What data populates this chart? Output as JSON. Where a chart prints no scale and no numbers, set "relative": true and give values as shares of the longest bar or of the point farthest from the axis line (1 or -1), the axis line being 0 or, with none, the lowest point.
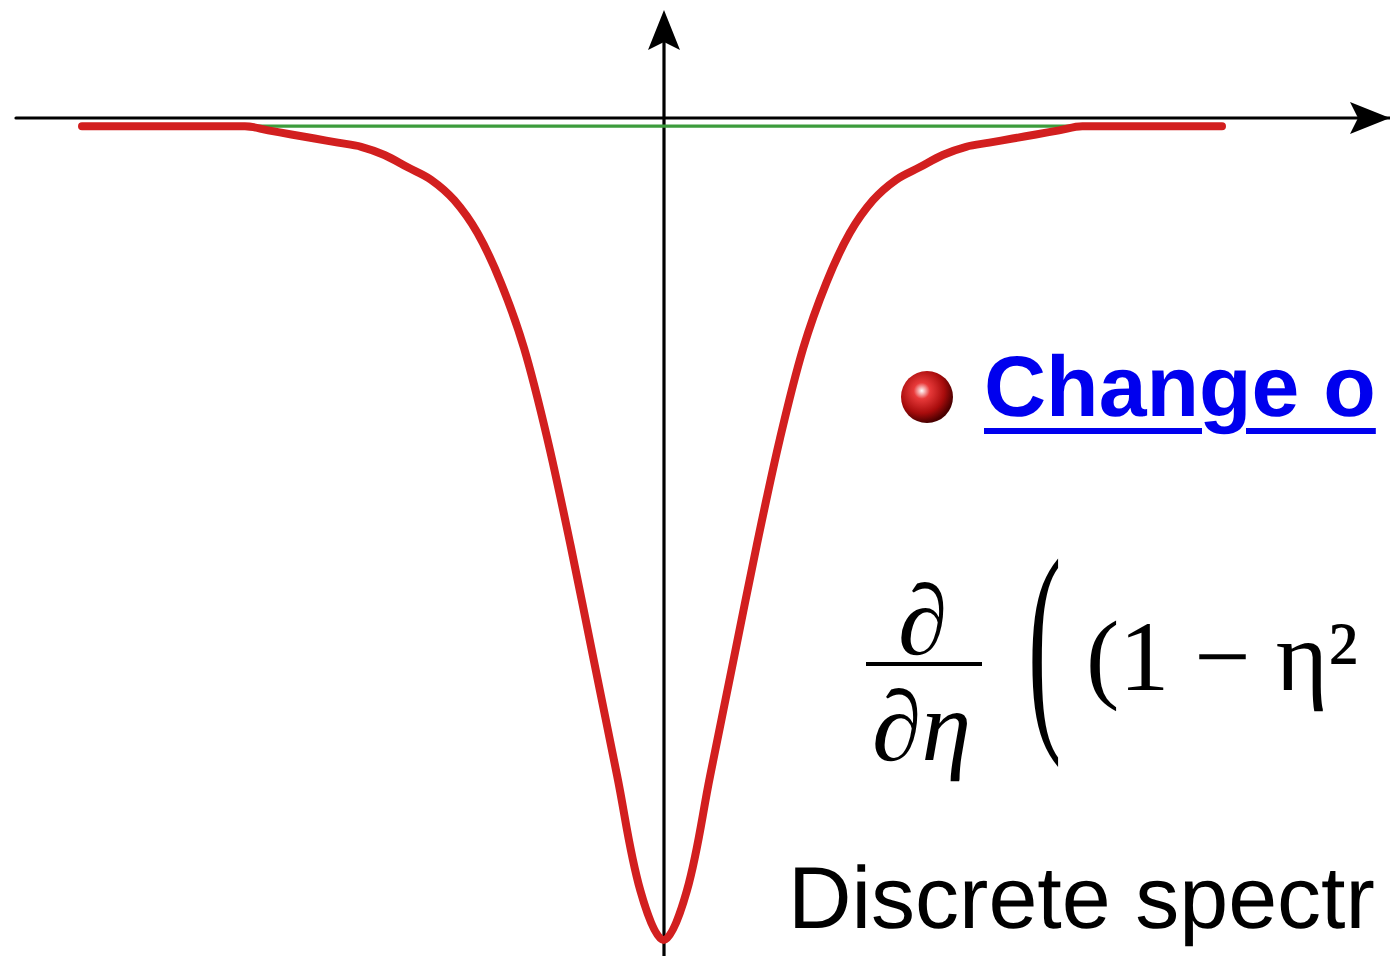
{
  "chart_data": {
    "type": "line",
    "relative": true,
    "categories": [
      null,
      null,
      null,
      null,
      null,
      null,
      null,
      null,
      null,
      null,
      null,
      null,
      null,
      null,
      null,
      null,
      null,
      null,
      null,
      null,
      null,
      null,
      null,
      null,
      null,
      null,
      null,
      null,
      null,
      null,
      null,
      null,
      null,
      null,
      null,
      null,
      null,
      null,
      null,
      null,
      null,
      null,
      null,
      null,
      null,
      null,
      null,
      null,
      null,
      null
    ],
    "series": [
      {
        "color": "#d21f1f",
        "values": [
          -0.01,
          -0.01,
          -0.01,
          -0.01,
          -0.01,
          -0.01,
          -0.01,
          -0.01,
          -0.015,
          -0.02,
          -0.025,
          -0.03,
          -0.035,
          -0.045,
          -0.06,
          -0.075,
          -0.1,
          -0.14,
          -0.2,
          -0.28,
          -0.39,
          -0.52,
          -0.66,
          -0.8,
          -0.94,
          -1,
          -0.94,
          -0.8,
          -0.66,
          -0.52,
          -0.39,
          -0.28,
          -0.2,
          -0.14,
          -0.1,
          -0.075,
          -0.06,
          -0.045,
          -0.035,
          -0.03,
          -0.025,
          -0.02,
          -0.015,
          -0.01,
          -0.01,
          -0.01,
          -0.01,
          -0.01,
          -0.01,
          -0.01
        ]
      }
    ],
    "ref_lines": [
      {
        "axis": "y",
        "value": -0.01,
        "color": "#3c9c3c"
      }
    ],
    "annotations": [
      "Change o",
      "∂",
      "∂η",
      "(",
      "(1 − η²",
      "Discrete spectr"
    ],
    "grid": false,
    "marker": "none",
    "line_style": "solid"
  }
}
